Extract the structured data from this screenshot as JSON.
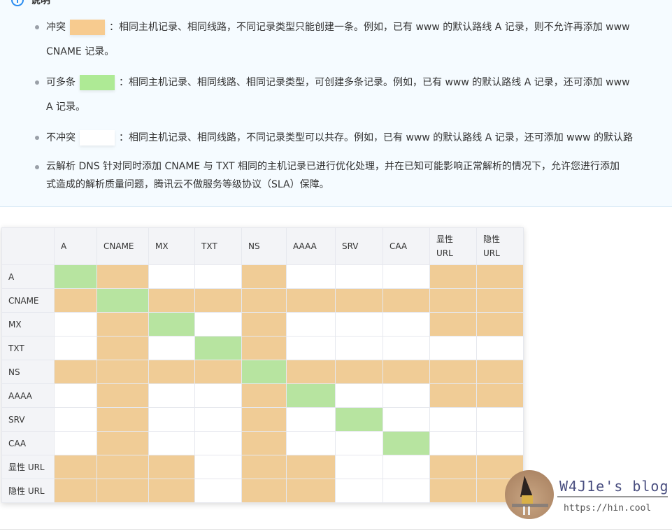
{
  "note": {
    "title": "说明",
    "items": [
      {
        "label": "冲突",
        "swatch": "#f7cb8f",
        "lines": [
          "：相同主机记录、相同线路，不同记录类型只能创建一条。例如，已有 www 的默认路线 A 记录，则不允许再添加 www",
          "CNAME 记录。"
        ]
      },
      {
        "label": "可多条",
        "swatch": "#aeea95",
        "lines": [
          "：相同主机记录、相同线路、相同记录类型，可创建多条记录。例如，已有 www 的默认路线 A 记录，还可添加 www",
          "A 记录。"
        ]
      },
      {
        "label": "不冲突",
        "swatch": "#ffffff",
        "lines": [
          "：相同主机记录、相同线路，不同记录类型可以共存。例如，已有 www 的默认路线 A 记录，还可添加 www 的默认路"
        ]
      },
      {
        "label": "",
        "lines": [
          "云解析 DNS 针对同时添加 CNAME 与 TXT 相同的主机记录已进行优化处理，并在已知可能影响正常解析的情况下，允许您进行添加",
          "式造成的解析质量问题，腾讯云不做服务等级协议（SLA）保障。"
        ]
      }
    ]
  },
  "matrix": {
    "columns": [
      "A",
      "CNAME",
      "MX",
      "TXT",
      "NS",
      "AAAA",
      "SRV",
      "CAA",
      "显性\nURL",
      "隐性\nURL"
    ],
    "rows": [
      {
        "label": "A",
        "cells": "gowwowwwoo"
      },
      {
        "label": "CNAME",
        "cells": "ogoooooooo"
      },
      {
        "label": "MX",
        "cells": "wogwowwwoo"
      },
      {
        "label": "TXT",
        "cells": "wowgowwwww"
      },
      {
        "label": "NS",
        "cells": "oooogooooo"
      },
      {
        "label": "AAAA",
        "cells": "wowwogwwoo"
      },
      {
        "label": "SRV",
        "cells": "wowwowgwww"
      },
      {
        "label": "CAA",
        "cells": "wowwowwgww"
      },
      {
        "label": "显性 URL",
        "cells": "ooowoowwoo"
      },
      {
        "label": "隐性 URL",
        "cells": "ooowoowwoo"
      }
    ],
    "legend": {
      "o": "冲突",
      "g": "可多条",
      "w": "不冲突"
    },
    "colors": {
      "o": "#f0cc96",
      "g": "#b7e4a0",
      "w": "#ffffff"
    }
  },
  "watermark": {
    "title": "W4J1e's blog",
    "url": "https://hin.cool"
  }
}
